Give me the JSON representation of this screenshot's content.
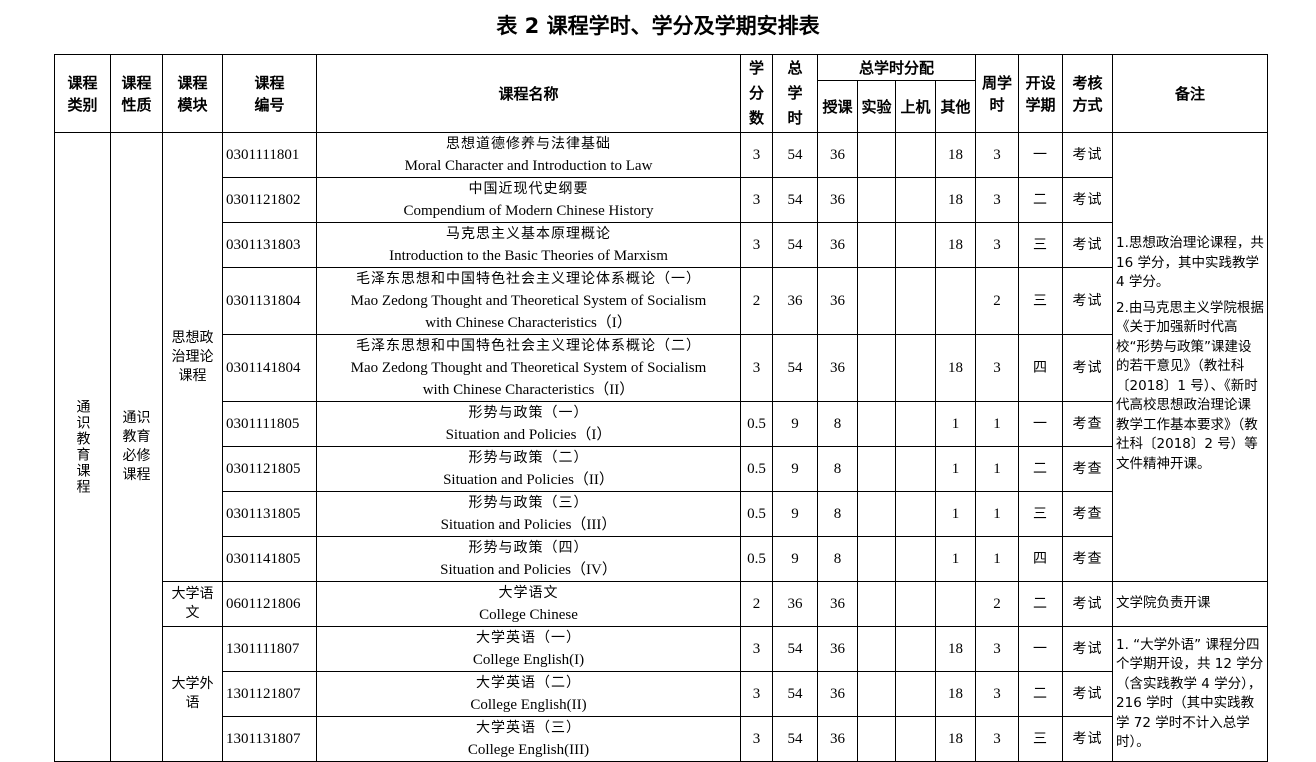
{
  "title": "表 2  课程学时、学分及学期安排表",
  "headers": {
    "category": "课程类别",
    "nature": "课程性质",
    "module": "课程模块",
    "code": "课程编号",
    "name": "课程名称",
    "credits": "学分数",
    "total_hours": "总学时",
    "distribution": "总学时分配",
    "lecture": "授课",
    "experiment": "实验",
    "computer": "上机",
    "other": "其他",
    "weekly": "周学时",
    "semester": "开设学期",
    "assessment": "考核方式",
    "notes": "备注"
  },
  "category": "通识教育课程",
  "nature": "通识教育必修课程",
  "modules": [
    "思想政治理论课程",
    "大学语文",
    "大学外语"
  ],
  "notes": {
    "politics_1": "1.思想政治理论课程，共 16 学分，其中实践教学 4 学分。",
    "politics_2": "2.由马克思主义学院根据《关于加强新时代高校“形势与政策”课建设的若干意见》（教社科〔2018〕1 号）、《新时代高校思想政治理论课教学工作基本要求》（教社科〔2018〕2 号）等文件精神开课。",
    "chinese": "文学院负责开课",
    "english": "1. “大学外语” 课程分四个学期开设，共 12 学分（含实践教学 4 学分），216 学时（其中实践教学 72 学时不计入总学时）。"
  },
  "rows": [
    {
      "code": "0301111801",
      "cn": "思想道德修养与法律基础",
      "en": [
        "Moral Character and Introduction to Law"
      ],
      "credits": "3",
      "hours": "54",
      "lecture": "36",
      "exp": "",
      "comp": "",
      "other": "18",
      "weekly": "3",
      "sem": "一",
      "assess": "考试"
    },
    {
      "code": "0301121802",
      "cn": "中国近现代史纲要",
      "en": [
        "Compendium of Modern Chinese History"
      ],
      "credits": "3",
      "hours": "54",
      "lecture": "36",
      "exp": "",
      "comp": "",
      "other": "18",
      "weekly": "3",
      "sem": "二",
      "assess": "考试"
    },
    {
      "code": "0301131803",
      "cn": "马克思主义基本原理概论",
      "en": [
        "Introduction to the Basic Theories of Marxism"
      ],
      "credits": "3",
      "hours": "54",
      "lecture": "36",
      "exp": "",
      "comp": "",
      "other": "18",
      "weekly": "3",
      "sem": "三",
      "assess": "考试"
    },
    {
      "code": "0301131804",
      "cn": "毛泽东思想和中国特色社会主义理论体系概论（一）",
      "en": [
        "Mao Zedong Thought and Theoretical System of Socialism",
        "with Chinese Characteristics（I）"
      ],
      "credits": "2",
      "hours": "36",
      "lecture": "36",
      "exp": "",
      "comp": "",
      "other": "",
      "weekly": "2",
      "sem": "三",
      "assess": "考试"
    },
    {
      "code": "0301141804",
      "cn": "毛泽东思想和中国特色社会主义理论体系概论（二）",
      "en": [
        "Mao Zedong Thought and Theoretical System of Socialism",
        "with Chinese Characteristics（II）"
      ],
      "credits": "3",
      "hours": "54",
      "lecture": "36",
      "exp": "",
      "comp": "",
      "other": "18",
      "weekly": "3",
      "sem": "四",
      "assess": "考试"
    },
    {
      "code": "0301111805",
      "cn": "形势与政策（一）",
      "en": [
        "Situation and Policies（I）"
      ],
      "credits": "0.5",
      "hours": "9",
      "lecture": "8",
      "exp": "",
      "comp": "",
      "other": "1",
      "weekly": "1",
      "sem": "一",
      "assess": "考查"
    },
    {
      "code": "0301121805",
      "cn": "形势与政策（二）",
      "en": [
        "Situation and Policies（II）"
      ],
      "credits": "0.5",
      "hours": "9",
      "lecture": "8",
      "exp": "",
      "comp": "",
      "other": "1",
      "weekly": "1",
      "sem": "二",
      "assess": "考查"
    },
    {
      "code": "0301131805",
      "cn": "形势与政策（三）",
      "en": [
        "Situation and Policies（III）"
      ],
      "credits": "0.5",
      "hours": "9",
      "lecture": "8",
      "exp": "",
      "comp": "",
      "other": "1",
      "weekly": "1",
      "sem": "三",
      "assess": "考查"
    },
    {
      "code": "0301141805",
      "cn": "形势与政策（四）",
      "en": [
        "Situation and Policies（IV）"
      ],
      "credits": "0.5",
      "hours": "9",
      "lecture": "8",
      "exp": "",
      "comp": "",
      "other": "1",
      "weekly": "1",
      "sem": "四",
      "assess": "考查"
    },
    {
      "code": "0601121806",
      "cn": "大学语文",
      "en": [
        "College Chinese"
      ],
      "credits": "2",
      "hours": "36",
      "lecture": "36",
      "exp": "",
      "comp": "",
      "other": "",
      "weekly": "2",
      "sem": "二",
      "assess": "考试"
    },
    {
      "code": "1301111807",
      "cn": "大学英语（一）",
      "en": [
        "College English(I)"
      ],
      "credits": "3",
      "hours": "54",
      "lecture": "36",
      "exp": "",
      "comp": "",
      "other": "18",
      "weekly": "3",
      "sem": "一",
      "assess": "考试"
    },
    {
      "code": "1301121807",
      "cn": "大学英语（二）",
      "en": [
        "College English(II)"
      ],
      "credits": "3",
      "hours": "54",
      "lecture": "36",
      "exp": "",
      "comp": "",
      "other": "18",
      "weekly": "3",
      "sem": "二",
      "assess": "考试"
    },
    {
      "code": "1301131807",
      "cn": "大学英语（三）",
      "en": [
        "College English(III)"
      ],
      "credits": "3",
      "hours": "54",
      "lecture": "36",
      "exp": "",
      "comp": "",
      "other": "18",
      "weekly": "3",
      "sem": "三",
      "assess": "考试"
    }
  ]
}
